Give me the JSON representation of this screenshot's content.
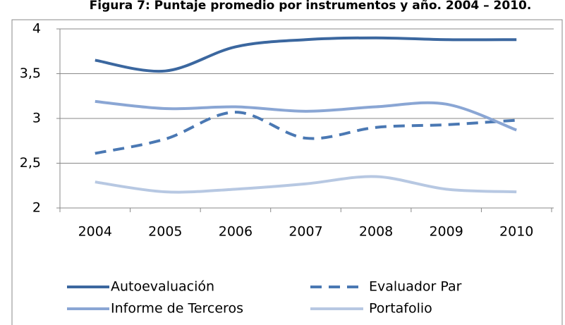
{
  "chart_data": {
    "type": "line",
    "title": "Figura 7: Puntaje promedio por instrumentos y año. 2004 – 2010.",
    "categories": [
      "2004",
      "2005",
      "2006",
      "2007",
      "2008",
      "2009",
      "2010"
    ],
    "series": [
      {
        "name": "Autoevaluación",
        "color": "#3b679f",
        "dash": false,
        "values": [
          3.65,
          3.53,
          3.8,
          3.88,
          3.9,
          3.88,
          3.88
        ]
      },
      {
        "name": "Evaluador Par",
        "color": "#4a78b3",
        "dash": true,
        "values": [
          2.61,
          2.77,
          3.07,
          2.78,
          2.9,
          2.93,
          2.98
        ]
      },
      {
        "name": "Informe de Terceros",
        "color": "#8aa6d4",
        "dash": false,
        "values": [
          3.19,
          3.11,
          3.13,
          3.08,
          3.13,
          3.16,
          2.87
        ]
      },
      {
        "name": "Portafolio",
        "color": "#b7c8e2",
        "dash": false,
        "values": [
          2.29,
          2.18,
          2.21,
          2.27,
          2.35,
          2.21,
          2.18
        ]
      }
    ],
    "ylim": [
      2,
      4
    ],
    "yticks": [
      2,
      {
        "value": 2.5,
        "label": "2,5"
      },
      3,
      {
        "value": 3.5,
        "label": "3,5"
      },
      4
    ],
    "grid": true
  }
}
